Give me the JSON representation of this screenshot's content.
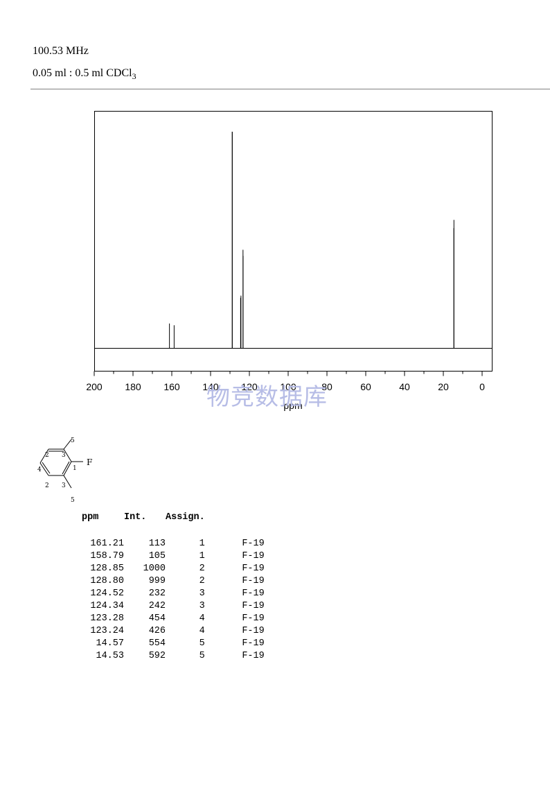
{
  "header": {
    "frequency": "100.53 MHz",
    "solvent_prefix": "0.05 ml : 0.5 ml CDCl",
    "solvent_subscript": "3"
  },
  "watermark": "物竞数据库",
  "chart_data": {
    "type": "line",
    "title": "",
    "xlabel": "ppm",
    "ylabel": "",
    "xlim": [
      200,
      -5
    ],
    "x_ticks": [
      200,
      180,
      160,
      140,
      120,
      100,
      80,
      60,
      40,
      20,
      0
    ],
    "x_tick_labels": [
      "200",
      "180",
      "160",
      "140",
      "120",
      "100",
      "80",
      "60",
      "40",
      "20",
      "0"
    ],
    "grid": false,
    "peaks": [
      {
        "ppm": 161.21,
        "intensity": 113
      },
      {
        "ppm": 158.79,
        "intensity": 105
      },
      {
        "ppm": 128.85,
        "intensity": 1000
      },
      {
        "ppm": 128.8,
        "intensity": 999
      },
      {
        "ppm": 124.52,
        "intensity": 232
      },
      {
        "ppm": 124.34,
        "intensity": 242
      },
      {
        "ppm": 123.28,
        "intensity": 454
      },
      {
        "ppm": 123.24,
        "intensity": 426
      },
      {
        "ppm": 14.57,
        "intensity": 554
      },
      {
        "ppm": 14.53,
        "intensity": 592
      }
    ]
  },
  "structure": {
    "labels": {
      "f": "F",
      "c1": "1",
      "c2_top": "2",
      "c2_bottom": "2",
      "c3_top": "3",
      "c3_bottom": "3",
      "c4": "4",
      "c5_top": "5",
      "c5_bottom": "5"
    }
  },
  "table": {
    "headers": [
      "ppm",
      "Int.",
      "Assign."
    ],
    "rows": [
      {
        "ppm": "161.21",
        "int": "113",
        "assign": "1",
        "nucleus": "F-19"
      },
      {
        "ppm": "158.79",
        "int": "105",
        "assign": "1",
        "nucleus": "F-19"
      },
      {
        "ppm": "128.85",
        "int": "1000",
        "assign": "2",
        "nucleus": "F-19"
      },
      {
        "ppm": "128.80",
        "int": "999",
        "assign": "2",
        "nucleus": "F-19"
      },
      {
        "ppm": "124.52",
        "int": "232",
        "assign": "3",
        "nucleus": "F-19"
      },
      {
        "ppm": "124.34",
        "int": "242",
        "assign": "3",
        "nucleus": "F-19"
      },
      {
        "ppm": "123.28",
        "int": "454",
        "assign": "4",
        "nucleus": "F-19"
      },
      {
        "ppm": "123.24",
        "int": "426",
        "assign": "4",
        "nucleus": "F-19"
      },
      {
        "ppm": "14.57",
        "int": "554",
        "assign": "5",
        "nucleus": "F-19"
      },
      {
        "ppm": "14.53",
        "int": "592",
        "assign": "5",
        "nucleus": "F-19"
      }
    ]
  }
}
